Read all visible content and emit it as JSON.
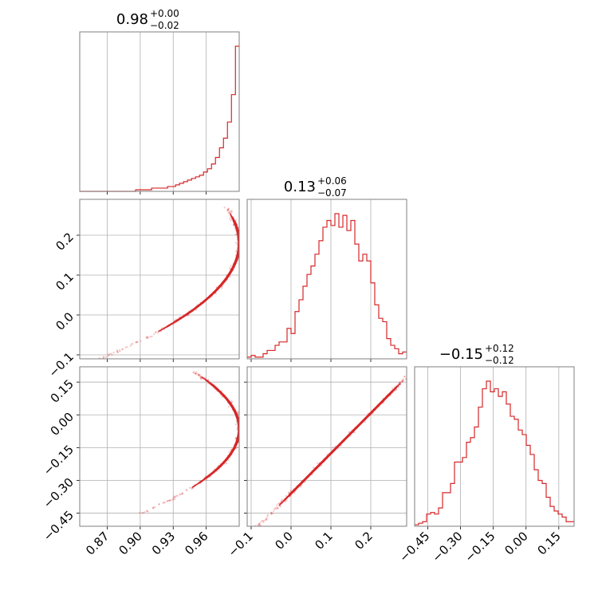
{
  "chart_data": [
    {
      "type": "histogram",
      "panel": "hist-param-1",
      "title": {
        "value": "0.98",
        "upper": "+0.00",
        "lower": "−0.02"
      },
      "xlim": [
        0.845,
        0.99
      ],
      "color": "#d62728",
      "grid": true,
      "bins": {
        "start": 0.845,
        "width": 0.00363,
        "counts": [
          0,
          0,
          0,
          0,
          0,
          0,
          0,
          0,
          0,
          0,
          0,
          0,
          0,
          0,
          1,
          1,
          1,
          1,
          2,
          2,
          2,
          2,
          3,
          3,
          4,
          5,
          6,
          7,
          8,
          9,
          10,
          12,
          14,
          17,
          21,
          27,
          33,
          43,
          60,
          90
        ]
      }
    },
    {
      "type": "histogram",
      "panel": "hist-param-2",
      "title": {
        "value": "0.13",
        "upper": "+0.06",
        "lower": "−0.07"
      },
      "xlim": [
        -0.11,
        0.29
      ],
      "color": "#d62728",
      "grid": true,
      "bins": {
        "start": -0.11,
        "width": 0.01,
        "counts": [
          1,
          2,
          1,
          1,
          3,
          5,
          5,
          8,
          10,
          10,
          18,
          15,
          28,
          35,
          43,
          50,
          55,
          62,
          70,
          78,
          82,
          79,
          86,
          78,
          85,
          76,
          82,
          68,
          58,
          62,
          58,
          45,
          32,
          24,
          22,
          12,
          8,
          6,
          3,
          4
        ]
      }
    },
    {
      "type": "histogram",
      "panel": "hist-param-3",
      "title": {
        "value": "−0.15",
        "upper": "+0.12",
        "lower": "−0.12"
      },
      "xlim": [
        -0.51,
        0.22
      ],
      "color": "#d62728",
      "grid": true,
      "bins": {
        "start": -0.51,
        "width": 0.01825,
        "counts": [
          1,
          2,
          3,
          8,
          9,
          8,
          12,
          22,
          22,
          28,
          42,
          42,
          45,
          55,
          58,
          65,
          78,
          90,
          95,
          88,
          90,
          85,
          88,
          80,
          72,
          70,
          63,
          60,
          53,
          47,
          37,
          30,
          28,
          19,
          13,
          10,
          8,
          6,
          3,
          3
        ]
      }
    },
    {
      "type": "contour",
      "panel": "contour-param1-param2",
      "xlim": [
        0.845,
        0.99
      ],
      "ylim": [
        -0.11,
        0.29
      ],
      "color": "#d62728",
      "grid": true,
      "curve": {
        "model": "x = a - b*(y - c)^2",
        "a": 0.99,
        "b": 1.5,
        "c": 0.18,
        "t_range": [
          -0.11,
          0.27
        ]
      }
    },
    {
      "type": "contour",
      "panel": "contour-param1-param3",
      "xlim": [
        0.845,
        0.99
      ],
      "ylim": [
        -0.51,
        0.22
      ],
      "color": "#d62728",
      "grid": true,
      "curve": {
        "model": "x = a - b*(y - c)^2",
        "a": 0.99,
        "b": 0.6,
        "c": -0.065,
        "t_range": [
          -0.45,
          0.2
        ]
      }
    },
    {
      "type": "contour",
      "panel": "contour-param2-param3",
      "xlim": [
        -0.11,
        0.29
      ],
      "ylim": [
        -0.51,
        0.22
      ],
      "color": "#d62728",
      "grid": true,
      "curve": {
        "model": "y = m*x + k",
        "m": 1.84,
        "k": -0.36,
        "t_range": [
          -0.1,
          0.29
        ]
      }
    }
  ],
  "axes": {
    "param1_ticks": [
      "0.87",
      "0.90",
      "0.93",
      "0.96"
    ],
    "param1_values": [
      0.87,
      0.9,
      0.93,
      0.96
    ],
    "param2_ticks": [
      "−0.1",
      "0.0",
      "0.1",
      "0.2"
    ],
    "param2_values": [
      -0.1,
      0.0,
      0.1,
      0.2
    ],
    "param3_ticks": [
      "−0.45",
      "−0.30",
      "−0.15",
      "0.00",
      "0.15"
    ],
    "param3_values": [
      -0.45,
      -0.3,
      -0.15,
      0.0,
      0.15
    ]
  }
}
